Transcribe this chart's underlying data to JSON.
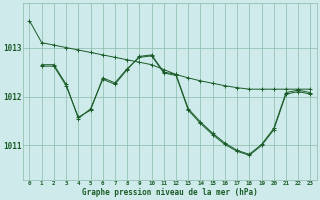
{
  "bg_color": "#ceeaea",
  "grid_color": "#8bbcaa",
  "line_color": "#1a5c28",
  "xlabel": "Graphe pression niveau de la mer (hPa)",
  "xlabel_color": "#1a5c28",
  "xtick_labels": [
    "0",
    "1",
    "2",
    "3",
    "4",
    "5",
    "6",
    "7",
    "8",
    "9",
    "10",
    "11",
    "12",
    "13",
    "14",
    "15",
    "16",
    "17",
    "18",
    "19",
    "20",
    "21",
    "22",
    "23"
  ],
  "ytick_labels": [
    1011,
    1012,
    1013
  ],
  "ylim": [
    1010.3,
    1013.9
  ],
  "xlim": [
    -0.5,
    23.5
  ],
  "line1_x": [
    0,
    1,
    2,
    3,
    4,
    5,
    6,
    7,
    8,
    9,
    10,
    11,
    12,
    13,
    14,
    15,
    16,
    17,
    18,
    19,
    20,
    21,
    22,
    23
  ],
  "line1_y": [
    1013.55,
    1013.1,
    1013.05,
    1013.0,
    1012.95,
    1012.9,
    1012.85,
    1012.8,
    1012.75,
    1012.7,
    1012.65,
    1012.55,
    1012.45,
    1012.38,
    1012.32,
    1012.27,
    1012.22,
    1012.18,
    1012.15,
    1012.15,
    1012.15,
    1012.15,
    1012.15,
    1012.15
  ],
  "line2_x": [
    1,
    2,
    3,
    4,
    5,
    6,
    7,
    8,
    9,
    10,
    11,
    12,
    13,
    14,
    15,
    16,
    17,
    18,
    19,
    20,
    21,
    22,
    23
  ],
  "line2_y": [
    1012.65,
    1012.65,
    1012.25,
    1011.55,
    1011.75,
    1012.35,
    1012.25,
    1012.55,
    1012.82,
    1012.85,
    1012.5,
    1012.45,
    1011.75,
    1011.48,
    1011.25,
    1011.05,
    1010.9,
    1010.82,
    1011.02,
    1011.35,
    1012.08,
    1012.13,
    1012.08
  ],
  "line3_x": [
    1,
    2,
    3,
    4,
    5,
    6,
    7,
    8,
    9,
    10,
    11,
    12,
    13,
    14,
    15,
    16,
    17,
    18,
    19,
    20,
    21,
    22,
    23
  ],
  "line3_y": [
    1012.62,
    1012.62,
    1012.22,
    1011.58,
    1011.72,
    1012.38,
    1012.28,
    1012.57,
    1012.8,
    1012.83,
    1012.48,
    1012.43,
    1011.72,
    1011.45,
    1011.22,
    1011.02,
    1010.88,
    1010.8,
    1011.0,
    1011.32,
    1012.05,
    1012.1,
    1012.05
  ]
}
